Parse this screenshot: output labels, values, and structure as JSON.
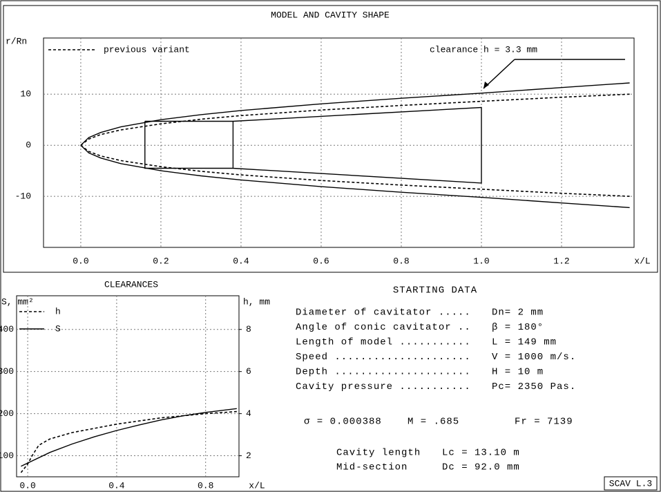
{
  "chart_data": [
    {
      "type": "line",
      "title": "MODEL AND CAVITY SHAPE",
      "y_label": "r/Rn",
      "x_label": "x/L",
      "xlim": [
        -0.093,
        1.381
      ],
      "ylim": [
        -20,
        21
      ],
      "xticks": [
        {
          "value": 0,
          "label": "0.0"
        },
        {
          "value": 0.2,
          "label": "0.2"
        },
        {
          "value": 0.4,
          "label": "0.4"
        },
        {
          "value": 0.6,
          "label": "0.6"
        },
        {
          "value": 0.8,
          "label": "0.8"
        },
        {
          "value": 1,
          "label": "1.0"
        },
        {
          "value": 1.2,
          "label": "1.2"
        }
      ],
      "yticks": [
        10,
        0,
        -10
      ],
      "grid": true,
      "legend": "top-left",
      "annotation": "clearance h = 3.3 mm",
      "series": [
        {
          "color": "#000000",
          "dashed": false,
          "x": [
            0,
            0.02,
            0.05,
            0.1,
            0.2,
            0.3,
            0.4,
            0.6,
            0.8,
            1.0,
            1.2,
            1.37,
            null,
            0,
            0.02,
            0.05,
            0.1,
            0.2,
            0.3,
            0.4,
            0.6,
            0.8,
            1.0,
            1.2,
            1.37
          ],
          "values": [
            0,
            1.5,
            2.5,
            3.6,
            5.0,
            6.0,
            6.8,
            8.1,
            9.2,
            10.2,
            11.3,
            12.2,
            null,
            0,
            -1.5,
            -2.5,
            -3.6,
            -5.0,
            -6.0,
            -6.8,
            -8.1,
            -9.2,
            -10.2,
            -11.3,
            -12.2
          ]
        },
        {
          "name": "previous variant",
          "color": "#000000",
          "dashed": true,
          "x": [
            0,
            0.02,
            0.05,
            0.1,
            0.2,
            0.3,
            0.4,
            0.6,
            0.8,
            1.0,
            1.2,
            1.37,
            null,
            0,
            0.02,
            0.05,
            0.1,
            0.2,
            0.3,
            0.4,
            0.6,
            0.8,
            1.0,
            1.2,
            1.37
          ],
          "values": [
            0,
            1.2,
            2.1,
            3.0,
            4.2,
            5.1,
            5.8,
            6.9,
            7.8,
            8.6,
            9.4,
            10.0,
            null,
            0,
            -1.2,
            -2.1,
            -3.0,
            -4.2,
            -5.1,
            -5.8,
            -6.9,
            -7.8,
            -8.6,
            -9.4,
            -10.0
          ]
        },
        {
          "color": "#000000",
          "dashed": false,
          "x": [
            0.16,
            0.38,
            1.0,
            1.0,
            0.38,
            0.16,
            0.16,
            null,
            0.38,
            0.38
          ],
          "values": [
            4.7,
            4.7,
            7.4,
            -7.4,
            -4.5,
            -4.5,
            4.7,
            null,
            4.7,
            -4.5
          ]
        }
      ]
    },
    {
      "type": "line",
      "title": "CLEARANCES",
      "y_label": "S, mm²",
      "y2_label": "h, mm",
      "x_label": "x/L",
      "xlim": [
        -0.05,
        0.95
      ],
      "ylim": [
        50,
        480
      ],
      "y2lim": [
        1,
        9.6
      ],
      "xticks": [
        {
          "value": 0,
          "label": "0.0"
        },
        {
          "value": 0.4,
          "label": "0.4"
        },
        {
          "value": 0.8,
          "label": "0.8"
        }
      ],
      "yticks": [
        100,
        200,
        300,
        400
      ],
      "y2ticks": [
        2,
        4,
        6,
        8
      ],
      "grid": true,
      "legend": "top-left",
      "series": [
        {
          "name": "h",
          "color": "#000000",
          "dashed": true,
          "axis": "y2",
          "x": [
            -0.03,
            0.0,
            0.02,
            0.05,
            0.1,
            0.2,
            0.4,
            0.6,
            0.8,
            0.94
          ],
          "values": [
            1.2,
            1.6,
            2.0,
            2.5,
            2.8,
            3.1,
            3.5,
            3.8,
            4.0,
            4.1
          ]
        },
        {
          "name": "S",
          "color": "#000000",
          "dashed": false,
          "x": [
            -0.03,
            0.1,
            0.2,
            0.3,
            0.4,
            0.5,
            0.6,
            0.7,
            0.8,
            0.94
          ],
          "values": [
            75,
            108,
            128,
            145,
            160,
            173,
            185,
            195,
            203,
            212
          ]
        }
      ]
    }
  ],
  "starting_data": {
    "title": "STARTING DATA",
    "rows": [
      {
        "label": "Diameter of cavitator .....",
        "value": "Dn= 2 mm"
      },
      {
        "label": "Angle of conic cavitator ..",
        "value": "β = 180°"
      },
      {
        "label": "Length of model ...........",
        "value": "L = 149 mm"
      },
      {
        "label": "Speed .....................",
        "value": "V = 1000 m/s."
      },
      {
        "label": "Depth .....................",
        "value": "H = 10 m"
      },
      {
        "label": "Cavity pressure ...........",
        "value": "Pc= 2350 Pas."
      }
    ],
    "parameters": [
      "σ = 0.000388",
      "M = .685",
      "Fr = 7139"
    ],
    "results": [
      {
        "label": "Cavity length",
        "value": "Lc = 13.10 m"
      },
      {
        "label": "Mid-section",
        "value": "Dc = 92.0 mm"
      }
    ]
  },
  "footer": "SCAV L.3"
}
